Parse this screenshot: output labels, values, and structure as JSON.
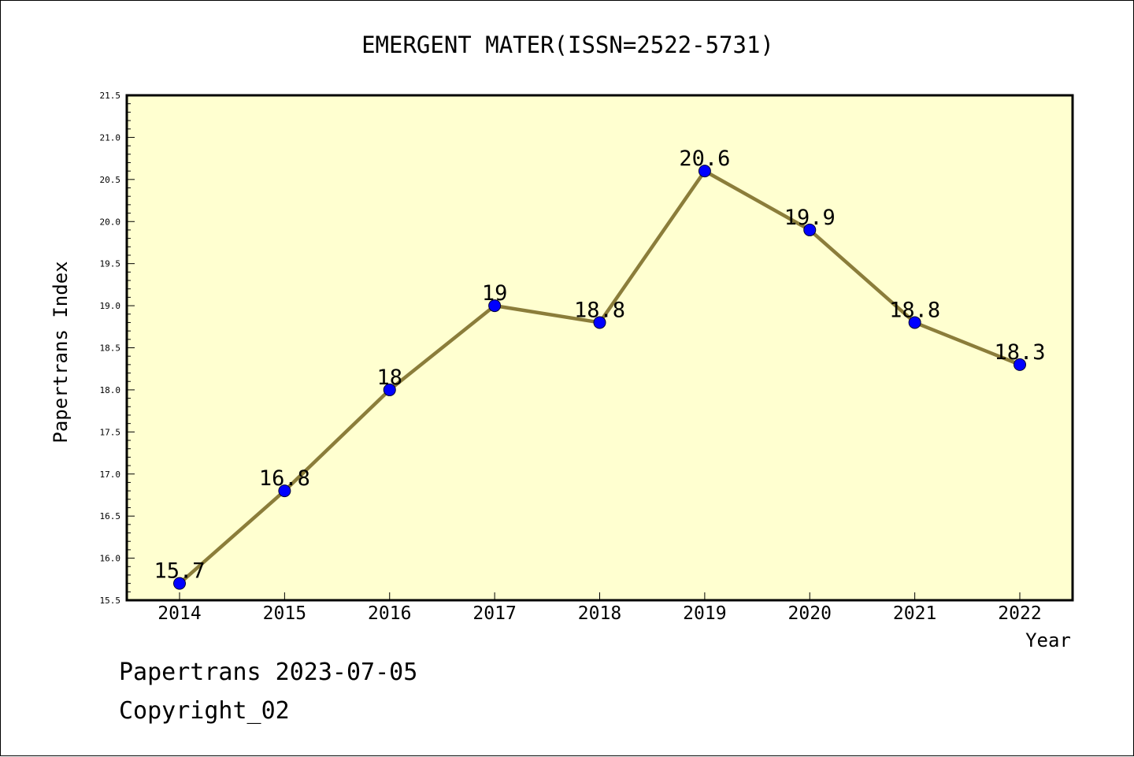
{
  "chart_data": {
    "type": "line",
    "title": "EMERGENT MATER(ISSN=2522-5731)",
    "xlabel": "Year",
    "ylabel": "Papertrans Index",
    "categories": [
      "2014",
      "2015",
      "2016",
      "2017",
      "2018",
      "2019",
      "2020",
      "2021",
      "2022"
    ],
    "values": [
      15.7,
      16.8,
      18,
      19,
      18.8,
      20.6,
      19.9,
      18.8,
      18.3
    ],
    "data_labels": [
      "15.7",
      "16.8",
      "18",
      "19",
      "18.8",
      "20.6",
      "19.9",
      "18.8",
      "18.3"
    ],
    "ylim": [
      15.5,
      21.5
    ],
    "yticks": [
      "15.5",
      "16.0",
      "16.5",
      "17.0",
      "17.5",
      "18.0",
      "18.5",
      "19.0",
      "19.5",
      "20.0",
      "20.5",
      "21.0",
      "21.5"
    ],
    "grid": false,
    "colors": {
      "plot_bg": "#ffffd0",
      "line": "#8b7d3a",
      "marker": "#0000ff"
    }
  },
  "footer": {
    "line1": "Papertrans 2023-07-05",
    "line2": "Copyright_02"
  }
}
